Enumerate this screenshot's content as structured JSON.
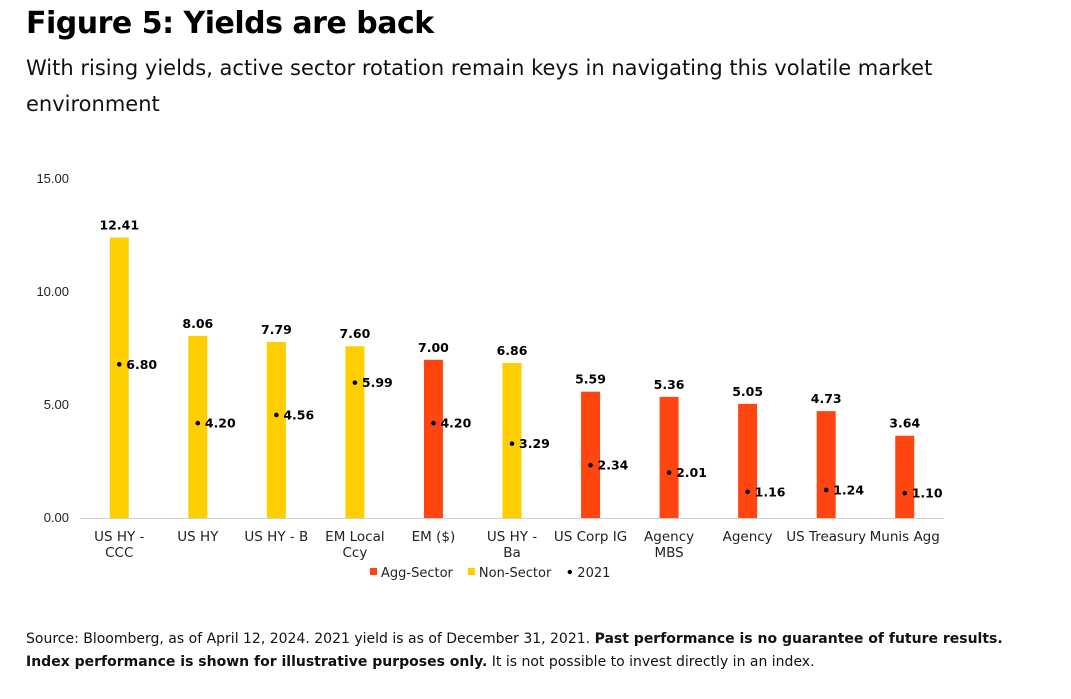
{
  "header": {
    "title": "Figure 5: Yields are back",
    "subtitle": "With rising yields, active sector rotation remain keys in navigating this volatile market environment"
  },
  "footnote": {
    "plain1": "Source: Bloomberg, as of April 12, 2024. 2021 yield is as of December 31, 2021. ",
    "bold": "Past performance is no guarantee of future results. Index performance is shown for illustrative purposes only.",
    "plain2": " It is not possible to invest directly in an index."
  },
  "colors": {
    "agg": "#FF4611",
    "non": "#FFCE00",
    "dot": "#000000"
  },
  "chart_data": {
    "type": "bar",
    "title": "",
    "xlabel": "",
    "ylabel": "",
    "ylim": [
      0,
      15
    ],
    "yticks": [
      "0.00",
      "5.00",
      "10.00",
      "15.00"
    ],
    "ytick_values": [
      0,
      5,
      10,
      15
    ],
    "grid": false,
    "legend_position": "bottom",
    "categories": [
      [
        "US HY -",
        "CCC"
      ],
      [
        "US HY"
      ],
      [
        "US HY - B"
      ],
      [
        "EM Local",
        "Ccy"
      ],
      [
        "EM ($)"
      ],
      [
        "US HY -",
        "Ba"
      ],
      [
        "US Corp IG"
      ],
      [
        "Agency",
        "MBS"
      ],
      [
        "Agency"
      ],
      [
        "US Treasury"
      ],
      [
        "Munis Agg"
      ]
    ],
    "values": [
      12.41,
      8.06,
      7.79,
      7.6,
      7.0,
      6.86,
      5.59,
      5.36,
      5.05,
      4.73,
      3.64
    ],
    "value_labels": [
      "12.41",
      "8.06",
      "7.79",
      "7.60",
      "7.00",
      "6.86",
      "5.59",
      "5.36",
      "5.05",
      "4.73",
      "3.64"
    ],
    "groups": [
      "Non-Sector",
      "Non-Sector",
      "Non-Sector",
      "Non-Sector",
      "Agg-Sector",
      "Non-Sector",
      "Agg-Sector",
      "Agg-Sector",
      "Agg-Sector",
      "Agg-Sector",
      "Agg-Sector"
    ],
    "series_2021": [
      6.8,
      4.2,
      4.56,
      5.99,
      4.2,
      3.29,
      2.34,
      2.01,
      1.16,
      1.24,
      1.1
    ],
    "series_2021_labels": [
      "6.80",
      "4.20",
      "4.56",
      "5.99",
      "4.20",
      "3.29",
      "2.34",
      "2.01",
      "1.16",
      "1.24",
      "1.10"
    ],
    "legend": [
      {
        "name": "Agg-Sector",
        "kind": "square",
        "color": "#FF4611"
      },
      {
        "name": "Non-Sector",
        "kind": "square",
        "color": "#FFCE00"
      },
      {
        "name": "2021",
        "kind": "dot",
        "color": "#000000"
      }
    ]
  }
}
